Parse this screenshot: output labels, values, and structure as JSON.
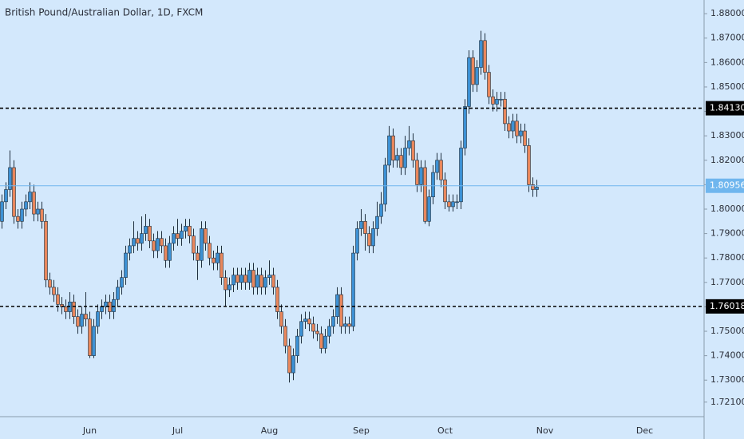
{
  "chart_data": {
    "type": "candlestick",
    "title": "British Pound/Australian Dollar, 1D, FXCM",
    "categories": [
      null,
      null,
      null,
      null,
      null,
      null,
      null,
      null,
      null,
      null,
      null,
      null,
      null,
      null,
      null,
      null,
      null,
      null,
      null,
      null,
      null,
      null,
      "Jun",
      null,
      null,
      null,
      null,
      null,
      null,
      null,
      null,
      null,
      null,
      null,
      null,
      null,
      null,
      null,
      null,
      null,
      null,
      null,
      null,
      null,
      "Jul",
      null,
      null,
      null,
      null,
      null,
      null,
      null,
      null,
      null,
      null,
      null,
      null,
      null,
      null,
      null,
      null,
      null,
      null,
      null,
      null,
      null,
      null,
      "Aug",
      null,
      null,
      null,
      null,
      null,
      null,
      null,
      null,
      null,
      null,
      null,
      null,
      null,
      null,
      null,
      null,
      null,
      null,
      null,
      null,
      null,
      null,
      "Sep",
      null,
      null,
      null,
      null,
      null,
      null,
      null,
      null,
      null,
      null,
      null,
      null,
      null,
      null,
      null,
      null,
      null,
      null,
      null,
      null,
      "Oct",
      null,
      null,
      null,
      null,
      null,
      null,
      null,
      null,
      null,
      null,
      null,
      null,
      null,
      null,
      null,
      null,
      null,
      null,
      null,
      null,
      null,
      null,
      null,
      null,
      "Nov",
      null,
      null,
      null,
      null,
      null,
      null,
      null,
      null,
      null,
      null,
      null,
      null,
      null,
      null,
      null,
      null,
      null,
      null,
      null,
      null,
      null,
      null,
      null,
      null,
      "Dec"
    ],
    "open": [
      1.795,
      1.803,
      1.808,
      1.817,
      1.797,
      1.795,
      1.8,
      1.803,
      1.807,
      1.798,
      1.8,
      1.795,
      1.771,
      1.768,
      1.765,
      1.761,
      1.76,
      1.758,
      1.762,
      1.756,
      1.752,
      1.757,
      1.755,
      1.74,
      1.752,
      1.758,
      1.76,
      1.762,
      1.758,
      1.763,
      1.768,
      1.772,
      1.782,
      1.785,
      1.788,
      1.786,
      1.79,
      1.793,
      1.787,
      1.783,
      1.788,
      1.785,
      1.779,
      1.786,
      1.79,
      1.788,
      1.791,
      1.793,
      1.789,
      1.782,
      1.779,
      1.792,
      1.786,
      1.78,
      1.778,
      1.782,
      1.772,
      1.767,
      1.769,
      1.773,
      1.77,
      1.773,
      1.77,
      1.775,
      1.768,
      1.773,
      1.768,
      1.772,
      1.773,
      1.768,
      1.758,
      1.752,
      1.744,
      1.733,
      1.74,
      1.748,
      1.754,
      1.755,
      1.753,
      1.75,
      1.749,
      1.743,
      1.748,
      1.752,
      1.756,
      1.765,
      1.752,
      1.753,
      1.752,
      1.782,
      1.792,
      1.795,
      1.79,
      1.785,
      1.792,
      1.797,
      1.802,
      1.818,
      1.83,
      1.82,
      1.822,
      1.817,
      1.825,
      1.828,
      1.82,
      1.81,
      1.817,
      1.795,
      1.805,
      1.815,
      1.82,
      1.812,
      1.803,
      1.801,
      1.803,
      1.803,
      1.825,
      1.842,
      1.862,
      1.851,
      1.858,
      1.869,
      1.856,
      1.846,
      1.843,
      1.845,
      1.845,
      1.835,
      1.832,
      1.836,
      1.83,
      1.832,
      1.826,
      1.81,
      1.808,
      null,
      null,
      null,
      null,
      null,
      null,
      null,
      null,
      null,
      null,
      null,
      null,
      null,
      null,
      null,
      null,
      null,
      null,
      null,
      null,
      null,
      null,
      null,
      null,
      null,
      null,
      null
    ],
    "high": [
      1.806,
      1.811,
      1.824,
      1.82,
      1.8,
      1.803,
      1.806,
      1.811,
      1.81,
      1.803,
      1.803,
      1.798,
      1.774,
      1.771,
      1.768,
      1.764,
      1.763,
      1.766,
      1.765,
      1.759,
      1.76,
      1.766,
      1.758,
      1.755,
      1.761,
      1.763,
      1.765,
      1.765,
      1.766,
      1.771,
      1.775,
      1.785,
      1.788,
      1.795,
      1.791,
      1.797,
      1.798,
      1.796,
      1.79,
      1.791,
      1.791,
      1.788,
      1.789,
      1.793,
      1.796,
      1.794,
      1.796,
      1.796,
      1.792,
      1.785,
      1.795,
      1.795,
      1.789,
      1.783,
      1.785,
      1.785,
      1.775,
      1.772,
      1.776,
      1.776,
      1.776,
      1.776,
      1.778,
      1.778,
      1.776,
      1.776,
      1.775,
      1.779,
      1.776,
      1.771,
      1.761,
      1.755,
      1.747,
      1.743,
      1.751,
      1.757,
      1.758,
      1.758,
      1.756,
      1.753,
      1.752,
      1.751,
      1.755,
      1.759,
      1.768,
      1.768,
      1.756,
      1.756,
      1.785,
      1.795,
      1.8,
      1.798,
      1.793,
      1.795,
      1.803,
      1.807,
      1.821,
      1.834,
      1.833,
      1.825,
      1.825,
      1.83,
      1.834,
      1.831,
      1.823,
      1.82,
      1.82,
      1.808,
      1.818,
      1.823,
      1.823,
      1.815,
      1.806,
      1.806,
      1.806,
      1.828,
      1.845,
      1.865,
      1.865,
      1.861,
      1.873,
      1.872,
      1.859,
      1.849,
      1.848,
      1.848,
      1.848,
      1.838,
      1.839,
      1.839,
      1.835,
      1.835,
      1.829,
      1.813,
      1.812,
      null,
      null,
      null,
      null,
      null,
      null,
      null,
      null,
      null,
      null,
      null,
      null,
      null,
      null,
      null,
      null,
      null,
      null,
      null,
      null,
      null,
      null,
      null,
      null,
      null,
      null,
      null
    ],
    "low": [
      1.792,
      1.8,
      1.805,
      1.794,
      1.792,
      1.792,
      1.797,
      1.8,
      1.795,
      1.795,
      1.792,
      1.768,
      1.765,
      1.762,
      1.758,
      1.757,
      1.755,
      1.755,
      1.753,
      1.749,
      1.749,
      1.752,
      1.739,
      1.739,
      1.749,
      1.755,
      1.757,
      1.755,
      1.755,
      1.76,
      1.765,
      1.769,
      1.779,
      1.782,
      1.783,
      1.783,
      1.787,
      1.784,
      1.78,
      1.78,
      1.782,
      1.776,
      1.776,
      1.783,
      1.785,
      1.785,
      1.788,
      1.786,
      1.779,
      1.771,
      1.776,
      1.783,
      1.777,
      1.775,
      1.775,
      1.769,
      1.76,
      1.764,
      1.766,
      1.767,
      1.767,
      1.767,
      1.767,
      1.765,
      1.765,
      1.765,
      1.765,
      1.769,
      1.765,
      1.755,
      1.749,
      1.741,
      1.729,
      1.73,
      1.737,
      1.745,
      1.751,
      1.75,
      1.747,
      1.746,
      1.741,
      1.741,
      1.745,
      1.749,
      1.753,
      1.749,
      1.749,
      1.749,
      1.75,
      1.779,
      1.789,
      1.783,
      1.782,
      1.782,
      1.789,
      1.794,
      1.799,
      1.815,
      1.817,
      1.817,
      1.814,
      1.814,
      1.822,
      1.817,
      1.807,
      1.807,
      1.794,
      1.793,
      1.802,
      1.812,
      1.809,
      1.8,
      1.799,
      1.799,
      1.8,
      1.8,
      1.822,
      1.839,
      1.848,
      1.848,
      1.855,
      1.853,
      1.843,
      1.84,
      1.84,
      1.842,
      1.832,
      1.829,
      1.829,
      1.827,
      1.827,
      1.823,
      1.807,
      1.805,
      1.805,
      null,
      null,
      null,
      null,
      null,
      null,
      null,
      null,
      null,
      null,
      null,
      null,
      null,
      null,
      null,
      null,
      null,
      null,
      null,
      null,
      null,
      null,
      null,
      null,
      null,
      null,
      null
    ],
    "close": [
      1.803,
      1.808,
      1.817,
      1.797,
      1.795,
      1.8,
      1.803,
      1.807,
      1.798,
      1.8,
      1.795,
      1.771,
      1.768,
      1.765,
      1.761,
      1.76,
      1.758,
      1.762,
      1.756,
      1.752,
      1.757,
      1.755,
      1.74,
      1.752,
      1.758,
      1.76,
      1.762,
      1.758,
      1.763,
      1.768,
      1.772,
      1.782,
      1.785,
      1.788,
      1.786,
      1.79,
      1.793,
      1.787,
      1.783,
      1.788,
      1.785,
      1.779,
      1.786,
      1.79,
      1.788,
      1.791,
      1.793,
      1.789,
      1.782,
      1.779,
      1.792,
      1.786,
      1.78,
      1.778,
      1.782,
      1.772,
      1.767,
      1.769,
      1.773,
      1.77,
      1.773,
      1.77,
      1.775,
      1.768,
      1.773,
      1.768,
      1.772,
      1.773,
      1.768,
      1.758,
      1.752,
      1.744,
      1.733,
      1.74,
      1.748,
      1.754,
      1.755,
      1.753,
      1.75,
      1.749,
      1.743,
      1.748,
      1.752,
      1.756,
      1.765,
      1.752,
      1.753,
      1.752,
      1.782,
      1.792,
      1.795,
      1.79,
      1.785,
      1.792,
      1.797,
      1.802,
      1.818,
      1.83,
      1.82,
      1.822,
      1.817,
      1.825,
      1.828,
      1.82,
      1.81,
      1.817,
      1.795,
      1.805,
      1.815,
      1.82,
      1.812,
      1.803,
      1.801,
      1.803,
      1.803,
      1.825,
      1.842,
      1.862,
      1.851,
      1.858,
      1.869,
      1.856,
      1.846,
      1.843,
      1.845,
      1.845,
      1.835,
      1.832,
      1.836,
      1.83,
      1.832,
      1.826,
      1.81,
      1.808,
      1.809,
      null,
      null,
      null,
      null,
      null,
      null,
      null,
      null,
      null,
      null,
      null,
      null,
      null,
      null,
      null,
      null,
      null,
      null,
      null,
      null,
      null,
      null,
      null,
      null,
      null,
      null,
      null
    ],
    "up_color": "#3d91d4",
    "down_color": "#e9875c",
    "outline_color": "#1f2f3f",
    "ylim": [
      1.7157,
      1.8856
    ],
    "yticks": [
      {
        "value": 1.88,
        "label": "1.88000"
      },
      {
        "value": 1.87,
        "label": "1.87000"
      },
      {
        "value": 1.86,
        "label": "1.86000"
      },
      {
        "value": 1.85,
        "label": "1.85000"
      },
      {
        "value": 1.84,
        "label": "1.84000"
      },
      {
        "value": 1.83,
        "label": "1.83000"
      },
      {
        "value": 1.82,
        "label": "1.82000"
      },
      {
        "value": 1.81,
        "label": "1.81000"
      },
      {
        "value": 1.8,
        "label": "1.80000"
      },
      {
        "value": 1.79,
        "label": "1.79000"
      },
      {
        "value": 1.78,
        "label": "1.78000"
      },
      {
        "value": 1.77,
        "label": "1.77000"
      },
      {
        "value": 1.76,
        "label": "1.76000"
      },
      {
        "value": 1.75,
        "label": "1.75000"
      },
      {
        "value": 1.74,
        "label": "1.74000"
      },
      {
        "value": 1.73,
        "label": "1.73000"
      },
      {
        "value": 1.721,
        "label": "1.72100"
      }
    ],
    "hlines": [
      {
        "value": 1.8413,
        "label": "1.84130"
      },
      {
        "value": 1.76018,
        "label": "1.76018"
      }
    ],
    "hline_color": "#000000",
    "price_line": {
      "value": 1.80956,
      "label": "1.80956"
    },
    "price_line_color": "#6fb6ee"
  }
}
